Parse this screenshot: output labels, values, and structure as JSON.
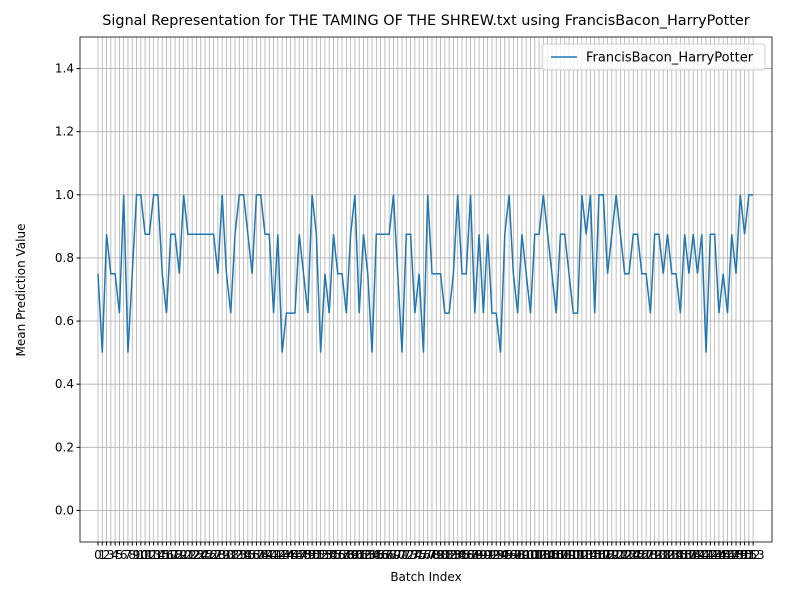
{
  "chart_data": {
    "type": "line",
    "title": "Signal Representation for THE TAMING OF THE SHREW.txt using FrancisBacon_HarryPotter",
    "x_label": "Batch Index",
    "y_label": "Mean Prediction Value",
    "x": [
      0,
      1,
      2,
      3,
      4,
      5,
      6,
      7,
      8,
      9,
      10,
      11,
      12,
      13,
      14,
      15,
      16,
      17,
      18,
      19,
      20,
      21,
      22,
      23,
      24,
      25,
      26,
      27,
      28,
      29,
      30,
      31,
      32,
      33,
      34,
      35,
      36,
      37,
      38,
      39,
      40,
      41,
      42,
      43,
      44,
      45,
      46,
      47,
      48,
      49,
      50,
      51,
      52,
      53,
      54,
      55,
      56,
      57,
      58,
      59,
      60,
      61,
      62,
      63,
      64,
      65,
      66,
      67,
      68,
      69,
      70,
      71,
      72,
      73,
      74,
      75,
      76,
      77,
      78,
      79,
      80,
      81,
      82,
      83,
      84,
      85,
      86,
      87,
      88,
      89,
      90,
      91,
      92,
      93,
      94,
      95,
      96,
      97,
      98,
      99,
      100,
      101,
      102,
      103,
      104,
      105,
      106,
      107,
      108,
      109,
      110,
      111,
      112,
      113,
      114,
      115,
      116,
      117,
      118,
      119,
      120,
      121,
      122,
      123,
      124,
      125,
      126,
      127,
      128,
      129,
      130,
      131,
      132,
      133,
      134,
      135,
      136,
      137,
      138,
      139,
      140,
      141,
      142,
      143,
      144,
      145,
      146,
      147,
      148,
      149,
      150,
      151,
      152,
      153
    ],
    "series": [
      {
        "name": "FrancisBacon_HarryPotter",
        "color": "#1f77b4",
        "values": [
          0.75,
          0.5,
          0.875,
          0.75,
          0.75,
          0.625,
          1,
          0.5,
          0.75,
          1,
          1,
          0.875,
          0.875,
          1,
          1,
          0.75,
          0.625,
          0.875,
          0.875,
          0.75,
          1,
          0.875,
          0.875,
          0.875,
          0.875,
          0.875,
          0.875,
          0.875,
          0.75,
          1,
          0.75,
          0.625,
          0.875,
          1,
          1,
          0.875,
          0.75,
          1,
          1,
          0.875,
          0.875,
          0.625,
          0.875,
          0.5,
          0.625,
          0.625,
          0.625,
          0.875,
          0.75,
          0.625,
          1,
          0.875,
          0.5,
          0.75,
          0.625,
          0.875,
          0.75,
          0.75,
          0.625,
          0.875,
          1,
          0.625,
          0.875,
          0.75,
          0.5,
          0.875,
          0.875,
          0.875,
          0.875,
          1,
          0.75,
          0.5,
          0.875,
          0.875,
          0.625,
          0.75,
          0.5,
          1,
          0.75,
          0.75,
          0.75,
          0.625,
          0.625,
          0.75,
          1,
          0.75,
          0.75,
          1,
          0.625,
          0.875,
          0.625,
          0.875,
          0.625,
          0.625,
          0.5,
          0.875,
          1,
          0.75,
          0.625,
          0.875,
          0.75,
          0.625,
          0.875,
          0.875,
          1,
          0.875,
          0.75,
          0.625,
          0.875,
          0.875,
          0.75,
          0.625,
          0.625,
          1,
          0.875,
          1,
          0.625,
          1,
          1,
          0.75,
          0.875,
          1,
          0.875,
          0.75,
          0.75,
          0.875,
          0.875,
          0.75,
          0.75,
          0.625,
          0.875,
          0.875,
          0.75,
          0.875,
          0.75,
          0.75,
          0.625,
          0.875,
          0.75,
          0.875,
          0.75,
          0.875,
          0.5,
          0.875,
          0.875,
          0.625,
          0.75,
          0.625,
          0.875,
          0.75,
          1,
          0.875,
          1,
          1
        ]
      }
    ],
    "xlim": [
      -4.2,
      157.4
    ],
    "xticks": [
      0,
      1,
      2,
      3,
      4,
      5,
      6,
      7,
      8,
      9,
      10,
      11,
      12,
      13,
      14,
      15,
      16,
      17,
      18,
      19,
      20,
      21,
      22,
      23,
      24,
      25,
      26,
      27,
      28,
      29,
      30,
      31,
      32,
      33,
      34,
      35,
      36,
      37,
      38,
      39,
      40,
      41,
      42,
      43,
      44,
      45,
      46,
      47,
      48,
      49,
      50,
      51,
      52,
      53,
      54,
      55,
      56,
      57,
      58,
      59,
      60,
      61,
      62,
      63,
      64,
      65,
      66,
      67,
      68,
      69,
      70,
      71,
      72,
      73,
      74,
      75,
      76,
      77,
      78,
      79,
      80,
      81,
      82,
      83,
      84,
      85,
      86,
      87,
      88,
      89,
      90,
      91,
      92,
      93,
      94,
      95,
      96,
      97,
      98,
      99,
      100,
      101,
      102,
      103,
      104,
      105,
      106,
      107,
      108,
      109,
      110,
      111,
      112,
      113,
      114,
      115,
      116,
      117,
      118,
      119,
      120,
      121,
      122,
      123,
      124,
      125,
      126,
      127,
      128,
      129,
      130,
      131,
      132,
      133,
      134,
      135,
      136,
      137,
      138,
      139,
      140,
      141,
      142,
      143,
      144,
      145,
      146,
      147,
      148,
      149,
      150,
      151,
      152,
      153
    ],
    "ylim": [
      -0.1,
      1.5
    ],
    "yticks": [
      {
        "value": 0,
        "label": "0.0"
      },
      0.2,
      0.4,
      0.6,
      0.8,
      {
        "value": 1,
        "label": "1.0"
      },
      1.2,
      1.4
    ],
    "grid": true,
    "legend": "upper right"
  }
}
